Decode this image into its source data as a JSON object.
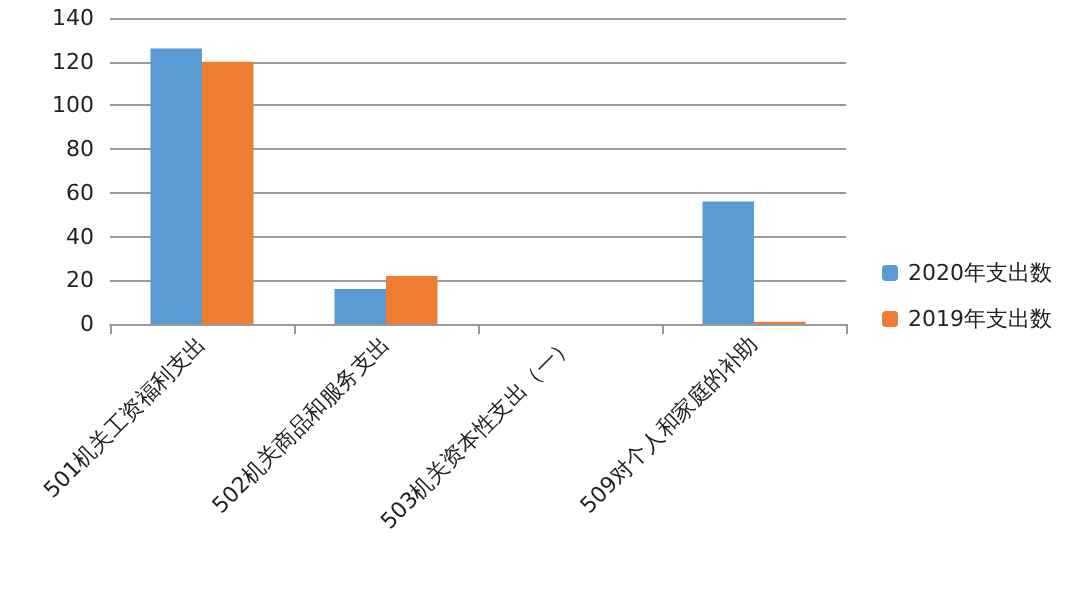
{
  "chart_data": {
    "type": "bar",
    "categories": [
      "501机关工资福利支出",
      "502机关商品和服务支出",
      "503机关资本性支出（一）",
      "509对个人和家庭的补助"
    ],
    "series": [
      {
        "name": "2020年支出数",
        "color": "#5b9bd5",
        "values": [
          126,
          16,
          0,
          56
        ]
      },
      {
        "name": "2019年支出数",
        "color": "#ed7d31",
        "values": [
          120,
          22,
          0,
          1
        ]
      }
    ],
    "ylim": [
      0,
      140
    ],
    "yticks": [
      0,
      20,
      40,
      60,
      80,
      100,
      120,
      140
    ],
    "grid": "y",
    "legend": "right"
  }
}
